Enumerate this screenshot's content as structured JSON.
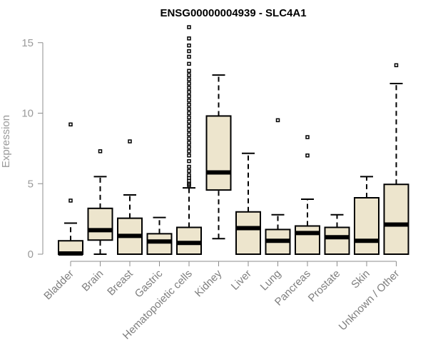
{
  "chart_data": {
    "type": "boxplot",
    "title": "ENSG00000004939 - SLC4A1",
    "ylabel": "Expression",
    "xlabel": "",
    "ylim": [
      0,
      16
    ],
    "yticks": [
      0,
      5,
      10,
      15
    ],
    "box_fill": "#ede5cd",
    "categories": [
      "Bladder",
      "Brain",
      "Breast",
      "Gastric",
      "Hematopoietic cells",
      "Kidney",
      "Liver",
      "Lung",
      "Pancreas",
      "Prostate",
      "Skin",
      "Unknown / Other"
    ],
    "boxes": [
      {
        "category": "Bladder",
        "whisker_low": 0,
        "q1": 0,
        "median": 0.05,
        "q3": 0.95,
        "whisker_high": 2.2,
        "outliers": [
          3.8,
          9.2
        ]
      },
      {
        "category": "Brain",
        "whisker_low": 0,
        "q1": 1.0,
        "median": 1.7,
        "q3": 3.25,
        "whisker_high": 5.5,
        "outliers": [
          7.3
        ]
      },
      {
        "category": "Breast",
        "whisker_low": 0,
        "q1": 0,
        "median": 1.3,
        "q3": 2.55,
        "whisker_high": 4.2,
        "outliers": [
          8.0
        ]
      },
      {
        "category": "Gastric",
        "whisker_low": 0,
        "q1": 0,
        "median": 0.9,
        "q3": 1.45,
        "whisker_high": 2.6,
        "outliers": []
      },
      {
        "category": "Hematopoietic cells",
        "whisker_low": 0,
        "q1": 0,
        "median": 0.8,
        "q3": 1.9,
        "whisker_high": 4.7,
        "outliers": [
          4.9,
          5.0,
          5.2,
          5.4,
          5.6,
          5.9,
          6.2,
          6.6,
          7.0,
          7.3,
          7.6,
          7.9,
          8.2,
          8.5,
          8.8,
          9.1,
          9.4,
          9.7,
          10.0,
          10.3,
          10.6,
          10.9,
          11.2,
          11.5,
          11.8,
          12.1,
          12.4,
          12.7,
          13.0,
          13.5,
          14.0,
          14.4,
          14.8,
          15.3,
          16.1
        ]
      },
      {
        "category": "Kidney",
        "whisker_low": 1.1,
        "q1": 4.55,
        "median": 5.8,
        "q3": 9.8,
        "whisker_high": 12.7,
        "outliers": []
      },
      {
        "category": "Liver",
        "whisker_low": 0,
        "q1": 0,
        "median": 1.85,
        "q3": 3.0,
        "whisker_high": 7.15,
        "outliers": []
      },
      {
        "category": "Lung",
        "whisker_low": 0,
        "q1": 0,
        "median": 0.95,
        "q3": 1.75,
        "whisker_high": 2.8,
        "outliers": [
          9.5
        ]
      },
      {
        "category": "Pancreas",
        "whisker_low": 0,
        "q1": 0,
        "median": 1.5,
        "q3": 2.0,
        "whisker_high": 3.9,
        "outliers": [
          7.0,
          8.3
        ]
      },
      {
        "category": "Prostate",
        "whisker_low": 0,
        "q1": 0,
        "median": 1.2,
        "q3": 1.9,
        "whisker_high": 2.8,
        "outliers": []
      },
      {
        "category": "Skin",
        "whisker_low": 0,
        "q1": 0,
        "median": 0.95,
        "q3": 4.0,
        "whisker_high": 5.5,
        "outliers": []
      },
      {
        "category": "Unknown / Other",
        "whisker_low": 0,
        "q1": 0,
        "median": 2.1,
        "q3": 4.95,
        "whisker_high": 12.1,
        "outliers": [
          13.4
        ]
      }
    ]
  }
}
